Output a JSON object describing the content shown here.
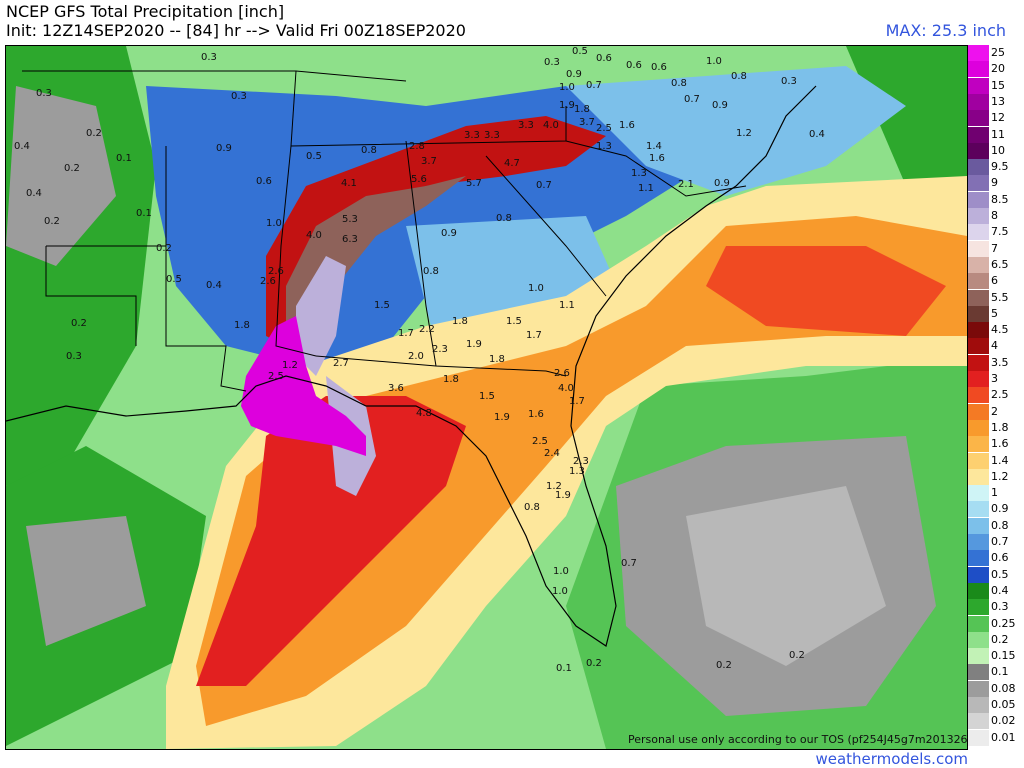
{
  "header": {
    "title": "NCEP GFS Total Precipitation [inch]",
    "subtitle": "Init: 12Z14SEP2020 -- [84] hr --> Valid Fri 00Z18SEP2020",
    "max_label": "MAX: 25.3 inch"
  },
  "footer": {
    "site": "weathermodels.com",
    "disclaimer": "Personal use only according to our TOS (pf254J45g7m201326)"
  },
  "colors": {
    "title_accent": "#3355dd"
  },
  "colorbar": [
    {
      "label": "25",
      "color": "#ee11ee"
    },
    {
      "label": "20",
      "color": "#dd00dd"
    },
    {
      "label": "15",
      "color": "#c000c0"
    },
    {
      "label": "13",
      "color": "#a000a0"
    },
    {
      "label": "12",
      "color": "#880088"
    },
    {
      "label": "11",
      "color": "#700070"
    },
    {
      "label": "10",
      "color": "#5c005c"
    },
    {
      "label": "9.5",
      "color": "#6a5a9e"
    },
    {
      "label": "9",
      "color": "#8270b4"
    },
    {
      "label": "8.5",
      "color": "#9e8ec8"
    },
    {
      "label": "8",
      "color": "#bcb0da"
    },
    {
      "label": "7.5",
      "color": "#dcd4ec"
    },
    {
      "label": "7",
      "color": "#f6e4e0"
    },
    {
      "label": "6.5",
      "color": "#d8b2a8"
    },
    {
      "label": "6",
      "color": "#b88a80"
    },
    {
      "label": "5.5",
      "color": "#8e625a"
    },
    {
      "label": "5",
      "color": "#6a3a32"
    },
    {
      "label": "4.5",
      "color": "#7a0a0a"
    },
    {
      "label": "4",
      "color": "#a00c0c"
    },
    {
      "label": "3.5",
      "color": "#c21212"
    },
    {
      "label": "3",
      "color": "#e22020"
    },
    {
      "label": "2.5",
      "color": "#f04a22"
    },
    {
      "label": "2",
      "color": "#f47a24"
    },
    {
      "label": "1.8",
      "color": "#f89a2c"
    },
    {
      "label": "1.6",
      "color": "#fbb548"
    },
    {
      "label": "1.4",
      "color": "#fdd070"
    },
    {
      "label": "1.2",
      "color": "#fde79c"
    },
    {
      "label": "1",
      "color": "#cff4f6"
    },
    {
      "label": "0.9",
      "color": "#a6ddf2"
    },
    {
      "label": "0.8",
      "color": "#7cc0ea"
    },
    {
      "label": "0.7",
      "color": "#5598de"
    },
    {
      "label": "0.6",
      "color": "#3472d4"
    },
    {
      "label": "0.5",
      "color": "#1e4ec6"
    },
    {
      "label": "0.4",
      "color": "#1a8a1a"
    },
    {
      "label": "0.3",
      "color": "#2da82d"
    },
    {
      "label": "0.25",
      "color": "#55c455"
    },
    {
      "label": "0.2",
      "color": "#8ee08a"
    },
    {
      "label": "0.15",
      "color": "#c2f2b6"
    },
    {
      "label": "0.1",
      "color": "#808080"
    },
    {
      "label": "0.08",
      "color": "#9c9c9c"
    },
    {
      "label": "0.05",
      "color": "#b8b8b8"
    },
    {
      "label": "0.02",
      "color": "#d4d4d4"
    },
    {
      "label": "0.01",
      "color": "#ececec"
    }
  ],
  "map_labels": [
    {
      "t": "0.3"
    },
    {
      "t": "0.3"
    },
    {
      "t": "0.2"
    },
    {
      "t": "0.4"
    },
    {
      "t": "0.3"
    },
    {
      "t": "0.2"
    },
    {
      "t": "0.1"
    },
    {
      "t": "0.4"
    },
    {
      "t": "0.2"
    },
    {
      "t": "0.1"
    },
    {
      "t": "0.2"
    },
    {
      "t": "0.8"
    },
    {
      "t": "0.5"
    },
    {
      "t": "0.9"
    },
    {
      "t": "0.6"
    },
    {
      "t": "1.0"
    },
    {
      "t": "4.0"
    },
    {
      "t": "4.1"
    },
    {
      "t": "5.3"
    },
    {
      "t": "6.3"
    },
    {
      "t": "2.6"
    },
    {
      "t": "2.6"
    },
    {
      "t": "1.8"
    },
    {
      "t": "2.8"
    },
    {
      "t": "3.7"
    },
    {
      "t": "5.6"
    },
    {
      "t": "5.7"
    },
    {
      "t": "4.7"
    },
    {
      "t": "3.3"
    },
    {
      "t": "3.3"
    },
    {
      "t": "3.3"
    },
    {
      "t": "4.0"
    },
    {
      "t": "3.7"
    },
    {
      "t": "2.5"
    },
    {
      "t": "1.9"
    },
    {
      "t": "1.8"
    },
    {
      "t": "1.6"
    },
    {
      "t": "1.3"
    },
    {
      "t": "1.0"
    },
    {
      "t": "0.9"
    },
    {
      "t": "0.7"
    },
    {
      "t": "0.6"
    },
    {
      "t": "0.5"
    },
    {
      "t": "0.3"
    },
    {
      "t": "0.6"
    },
    {
      "t": "0.6"
    },
    {
      "t": "0.8"
    },
    {
      "t": "1.0"
    },
    {
      "t": "0.8"
    },
    {
      "t": "1.4"
    },
    {
      "t": "1.6"
    },
    {
      "t": "2.1"
    },
    {
      "t": "0.9"
    },
    {
      "t": "1.3"
    },
    {
      "t": "1.1"
    },
    {
      "t": "0.7"
    },
    {
      "t": "0.8"
    },
    {
      "t": "0.9"
    },
    {
      "t": "1.0"
    },
    {
      "t": "1.1"
    },
    {
      "t": "1.5"
    },
    {
      "t": "1.7"
    },
    {
      "t": "2.2"
    },
    {
      "t": "1.8"
    },
    {
      "t": "1.9"
    },
    {
      "t": "1.8"
    },
    {
      "t": "1.5"
    },
    {
      "t": "1.7"
    },
    {
      "t": "2.0"
    },
    {
      "t": "2.3"
    },
    {
      "t": "1.8"
    },
    {
      "t": "2.6"
    },
    {
      "t": "4.0"
    },
    {
      "t": "1.7"
    },
    {
      "t": "1.5"
    },
    {
      "t": "1.9"
    },
    {
      "t": "1.6"
    },
    {
      "t": "2.5"
    },
    {
      "t": "2.4"
    },
    {
      "t": "2.3"
    },
    {
      "t": "1.9"
    },
    {
      "t": "1.3"
    },
    {
      "t": "1.2"
    },
    {
      "t": "0.8"
    },
    {
      "t": "1.0"
    },
    {
      "t": "1.0"
    },
    {
      "t": "0.7"
    },
    {
      "t": "0.1"
    },
    {
      "t": "0.2"
    },
    {
      "t": "0.2"
    },
    {
      "t": "0.2"
    },
    {
      "t": "0.4"
    },
    {
      "t": "3.6"
    },
    {
      "t": "4.8"
    },
    {
      "t": "2.7"
    },
    {
      "t": "2.5"
    },
    {
      "t": "1.2"
    },
    {
      "t": "0.2"
    },
    {
      "t": "0.3"
    },
    {
      "t": "0.5"
    },
    {
      "t": "0.4"
    },
    {
      "t": "0.8"
    },
    {
      "t": "1.2"
    },
    {
      "t": "0.9"
    },
    {
      "t": "0.7"
    },
    {
      "t": "0.3"
    }
  ]
}
